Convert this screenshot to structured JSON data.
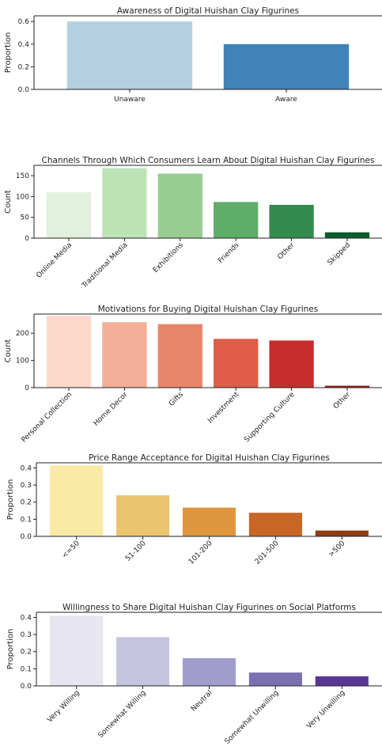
{
  "chart_data": [
    {
      "type": "bar",
      "title": "Awareness of Digital Huishan Clay Figurines",
      "xlabel": "",
      "ylabel": "Proportion",
      "categories": [
        "Unaware",
        "Aware"
      ],
      "values": [
        0.6,
        0.4
      ],
      "ylim": [
        0,
        0.65
      ],
      "yticks": [
        "0.0",
        "0.2",
        "0.4",
        "0.6"
      ],
      "ytick_values": [
        0,
        0.2,
        0.4,
        0.6
      ],
      "colors": [
        "#b3cfe0",
        "#3f83b8"
      ],
      "xtick_rotation": 0,
      "grid": false
    },
    {
      "type": "bar",
      "title": "Channels Through Which Consumers Learn About Digital Huishan Clay Figurines",
      "xlabel": "",
      "ylabel": "Count",
      "categories": [
        "Online Media",
        "Traditional Media",
        "Exhibitions",
        "Friends",
        "Other",
        "Skipped"
      ],
      "values": [
        110,
        168,
        155,
        87,
        80,
        14
      ],
      "ylim": [
        0,
        175
      ],
      "yticks": [
        "0",
        "50",
        "100",
        "150"
      ],
      "ytick_values": [
        0,
        50,
        100,
        150
      ],
      "colors": [
        "#e2f1dd",
        "#bde3b7",
        "#97cd93",
        "#60ac6a",
        "#338b4f",
        "#0a5c2b"
      ],
      "xtick_rotation": -45,
      "grid": false
    },
    {
      "type": "bar",
      "title": "Motivations for Buying Digital Huishan Clay Figurines",
      "xlabel": "",
      "ylabel": "Count",
      "categories": [
        "Personal Collection",
        "Home Decor",
        "Gifts",
        "Investment",
        "Supporting Culture",
        "Other"
      ],
      "values": [
        263,
        240,
        233,
        179,
        173,
        7
      ],
      "ylim": [
        0,
        270
      ],
      "yticks": [
        "0",
        "100",
        "200"
      ],
      "ytick_values": [
        0,
        100,
        200
      ],
      "colors": [
        "#fcd9cb",
        "#f2ae97",
        "#e8866c",
        "#de5c48",
        "#c52e2c",
        "#8e1d16"
      ],
      "xtick_rotation": -45,
      "grid": false
    },
    {
      "type": "bar",
      "title": "Price Range Acceptance for Digital Huishan Clay Figurines",
      "xlabel": "",
      "ylabel": "Proportion",
      "categories": [
        "<=50",
        "51-100",
        "101-200",
        "201-500",
        ">500"
      ],
      "values": [
        0.415,
        0.24,
        0.168,
        0.138,
        0.034
      ],
      "ylim": [
        0,
        0.43
      ],
      "yticks": [
        "0.0",
        "0.1",
        "0.2",
        "0.3",
        "0.4"
      ],
      "ytick_values": [
        0,
        0.1,
        0.2,
        0.3,
        0.4
      ],
      "colors": [
        "#f9eaa6",
        "#ecc46f",
        "#e0963d",
        "#c96626",
        "#8e3d10"
      ],
      "xtick_rotation": -45,
      "grid": false
    },
    {
      "type": "bar",
      "title": "Willingness to Share Digital Huishan Clay Figurines on Social Platforms",
      "xlabel": "",
      "ylabel": "Proportion",
      "categories": [
        "Very Willing",
        "Somewhat Willing",
        "Neutral",
        "Somewhat Unwilling",
        "Very Unwilling"
      ],
      "values": [
        0.41,
        0.285,
        0.162,
        0.078,
        0.056
      ],
      "ylim": [
        0,
        0.43
      ],
      "yticks": [
        "0.0",
        "0.1",
        "0.2",
        "0.3",
        "0.4"
      ],
      "ytick_values": [
        0,
        0.1,
        0.2,
        0.3,
        0.4
      ],
      "colors": [
        "#e6e5f0",
        "#c5c5e0",
        "#a09dcb",
        "#7c71b0",
        "#5a3693"
      ],
      "xtick_rotation": -45,
      "grid": false
    }
  ]
}
